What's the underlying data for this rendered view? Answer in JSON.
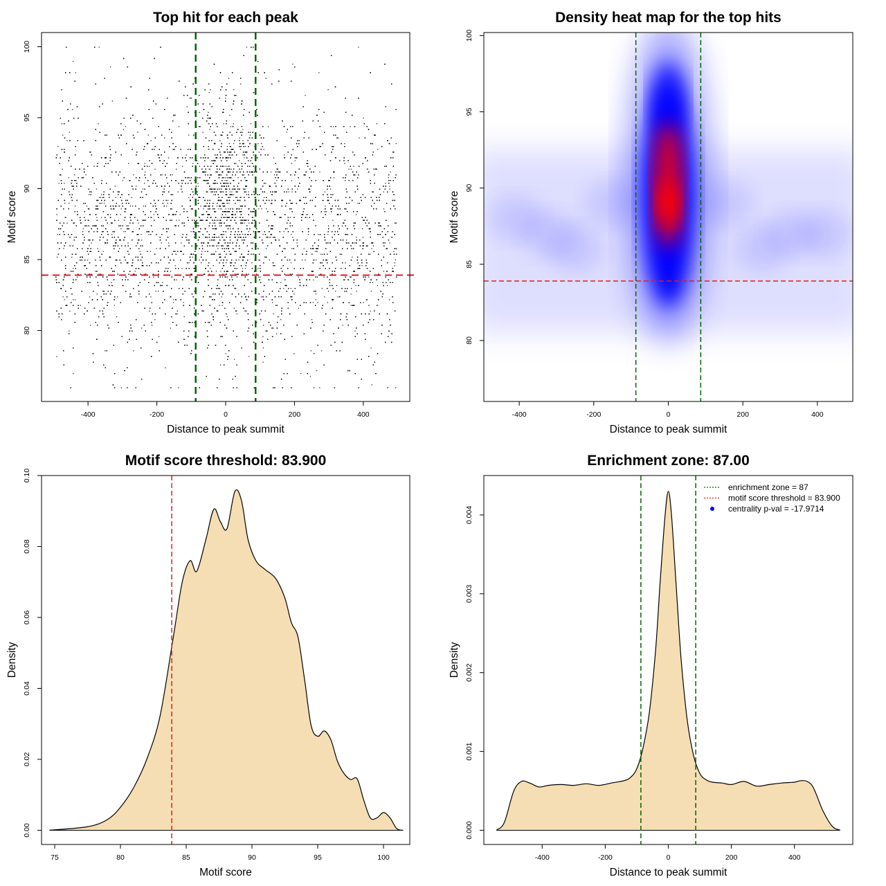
{
  "chart_data": [
    {
      "id": "scatter",
      "type": "scatter",
      "title": "Top hit for each peak",
      "xlabel": "Distance to peak summit",
      "ylabel": "Motif score",
      "xlim": [
        -535,
        535
      ],
      "ylim": [
        75,
        101
      ],
      "xticks": [
        -400,
        -200,
        0,
        200,
        400
      ],
      "yticks": [
        80,
        85,
        90,
        95,
        100
      ],
      "point_color": "#000000",
      "x_range": [
        -495,
        495
      ],
      "score_range": [
        76,
        100
      ],
      "approx_points": 16000,
      "central_peak_x": 0,
      "central_peak_score": 89,
      "threshold_line": {
        "y": 83.9,
        "color": "#e41a1c",
        "style": "dashed"
      },
      "zone_lines": {
        "x": [
          -87,
          87
        ],
        "color": "#006400",
        "style": "dashed"
      }
    },
    {
      "id": "heatmap",
      "type": "heatmap",
      "title": "Density heat map for the top hits",
      "xlabel": "Distance to peak summit",
      "ylabel": "Motif score",
      "xlim": [
        -495,
        495
      ],
      "ylim": [
        76,
        100.2
      ],
      "xticks": [
        -400,
        -200,
        0,
        200,
        400
      ],
      "yticks": [
        80,
        85,
        90,
        95,
        100
      ],
      "colorscale": [
        "#ffffff",
        "#0000ff",
        "#ff0000"
      ],
      "hotspot": {
        "x": 0,
        "y": 89
      },
      "threshold_line": {
        "y": 83.9,
        "color": "#e41a1c",
        "style": "dashed"
      },
      "zone_lines": {
        "x": [
          -87,
          87
        ],
        "color": "#006400",
        "style": "dashed"
      }
    },
    {
      "id": "scoredens",
      "type": "area",
      "title": "Motif score threshold: 83.900",
      "xlabel": "Motif score",
      "ylabel": "Density",
      "xlim": [
        74,
        102
      ],
      "ylim": [
        -0.004,
        0.1
      ],
      "xticks": [
        75,
        80,
        85,
        90,
        95,
        100
      ],
      "yticks": [
        0.0,
        0.02,
        0.04,
        0.06,
        0.08,
        0.1
      ],
      "ytick_labels": [
        "0.00",
        "0.02",
        "0.04",
        "0.06",
        "0.08",
        "0.10"
      ],
      "fill_color": "#f5deb3",
      "x": [
        74.6,
        77.5,
        79.0,
        80.0,
        81.0,
        82.0,
        83.0,
        84.0,
        84.7,
        85.3,
        85.8,
        86.5,
        87.1,
        87.6,
        88.1,
        88.7,
        89.2,
        89.7,
        90.3,
        91.0,
        91.8,
        92.5,
        93.0,
        93.5,
        94.0,
        94.5,
        95.0,
        95.5,
        96.0,
        96.5,
        97.0,
        97.5,
        98.0,
        98.5,
        99.0,
        99.5,
        100.0,
        100.5,
        101.0,
        101.5
      ],
      "y": [
        0.0,
        0.001,
        0.003,
        0.0065,
        0.012,
        0.02,
        0.032,
        0.054,
        0.07,
        0.076,
        0.073,
        0.082,
        0.0905,
        0.087,
        0.085,
        0.0955,
        0.093,
        0.082,
        0.076,
        0.0735,
        0.071,
        0.0655,
        0.0585,
        0.0545,
        0.0425,
        0.0295,
        0.0265,
        0.028,
        0.0255,
        0.0195,
        0.016,
        0.0143,
        0.0145,
        0.0085,
        0.0035,
        0.0035,
        0.005,
        0.0035,
        0.0005,
        0.0
      ],
      "threshold_line": {
        "x": 83.9,
        "color": "#e41a1c",
        "style": "dashed"
      }
    },
    {
      "id": "distdens",
      "type": "area",
      "title": "Enrichment zone: 87.00",
      "xlabel": "Distance to peak summit",
      "ylabel": "Density",
      "xlim": [
        -585,
        585
      ],
      "ylim": [
        -0.00018,
        0.0045
      ],
      "xticks": [
        -400,
        -200,
        0,
        200,
        400
      ],
      "yticks": [
        0.0,
        0.001,
        0.002,
        0.003,
        0.004
      ],
      "ytick_labels": [
        "0.000",
        "0.001",
        "0.002",
        "0.003",
        "0.004"
      ],
      "fill_color": "#f5deb3",
      "x": [
        -545,
        -520,
        -490,
        -465,
        -440,
        -410,
        -380,
        -340,
        -300,
        -260,
        -220,
        -180,
        -140,
        -120,
        -100,
        -80,
        -60,
        -40,
        -25,
        -10,
        0,
        10,
        25,
        40,
        60,
        80,
        100,
        120,
        140,
        170,
        200,
        240,
        280,
        320,
        360,
        400,
        420,
        440,
        460,
        490,
        520,
        545
      ],
      "y": [
        0.0,
        0.0001,
        0.0005,
        0.00062,
        0.0006,
        0.00055,
        0.00057,
        0.00058,
        0.00057,
        0.00059,
        0.00057,
        0.0006,
        0.00063,
        0.00067,
        0.00078,
        0.00105,
        0.0015,
        0.0023,
        0.0032,
        0.004,
        0.0043,
        0.004,
        0.0031,
        0.0022,
        0.0014,
        0.00095,
        0.00072,
        0.00064,
        0.00061,
        0.0006,
        0.00058,
        0.00062,
        0.00056,
        0.00058,
        0.0006,
        0.00061,
        0.00063,
        0.00062,
        0.00054,
        0.00025,
        5e-05,
        0.0
      ],
      "zone_lines": {
        "x": [
          -87,
          87
        ],
        "color": "#006400",
        "style": "dashed"
      },
      "legend": {
        "position": "top-right",
        "entries": [
          {
            "label": "enrichment zone = 87",
            "color": "#006400",
            "symbol": "line-dotted"
          },
          {
            "label": "motif score threshold = 83.900",
            "color": "#e41a1c",
            "symbol": "line-dotted"
          },
          {
            "label": "centrality p-val = -17.9714",
            "color": "#0000ff",
            "symbol": "point"
          }
        ]
      }
    }
  ]
}
